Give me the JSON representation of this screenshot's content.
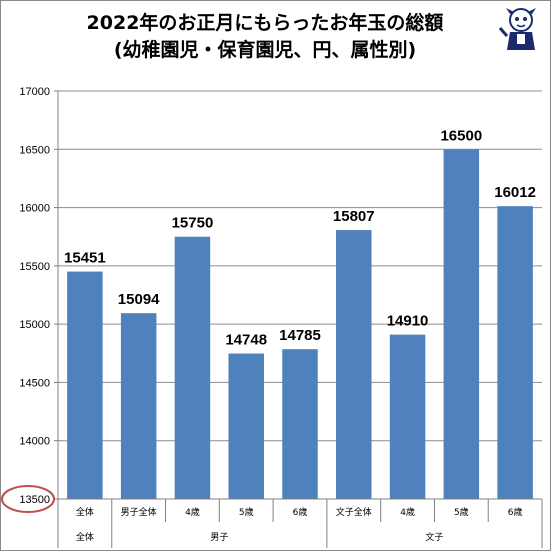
{
  "header": {
    "title_line1": "2022年のお正月にもらったお年玉の総額",
    "title_line2": "(幼稚園児・保育園児、円、属性別)"
  },
  "colors": {
    "bar": "#4f81bd",
    "grid": "#8c8c8c",
    "axis": "#808080",
    "highlight_circle": "#c0504d"
  },
  "chart_data": {
    "type": "bar",
    "title": "2022年のお正月にもらったお年玉の総額 (幼稚園児・保育園児、円、属性別)",
    "categories": [
      "全体",
      "男子全体",
      "4歳",
      "5歳",
      "6歳",
      "文子全体",
      "4歳",
      "5歳",
      "6歳"
    ],
    "groups": [
      {
        "label": "全体",
        "start": 0,
        "end": 0
      },
      {
        "label": "男子",
        "start": 1,
        "end": 4
      },
      {
        "label": "文子",
        "start": 5,
        "end": 8
      }
    ],
    "values": [
      15451,
      15094,
      15750,
      14748,
      14785,
      15807,
      14910,
      16500,
      16012
    ],
    "ylim": [
      13500,
      17000
    ],
    "yticks": [
      13500,
      14000,
      14500,
      15000,
      15500,
      16000,
      16500,
      17000
    ],
    "grid": true,
    "highlight": "13500"
  }
}
